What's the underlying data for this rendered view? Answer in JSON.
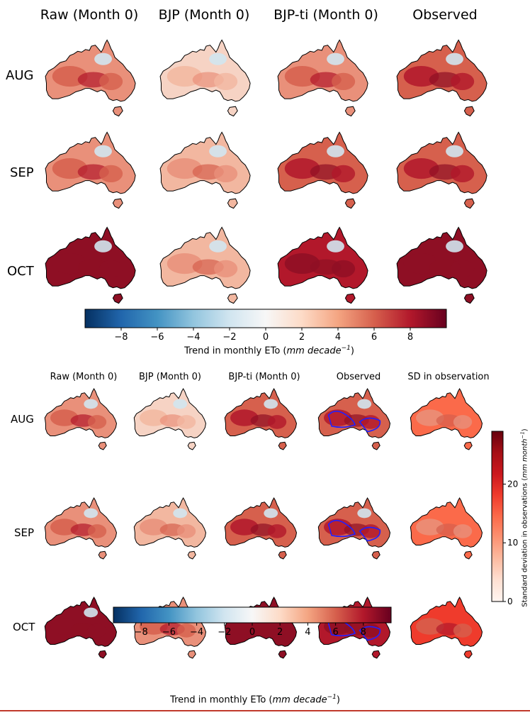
{
  "chart_data": [
    {
      "type": "heatmap",
      "title": "",
      "columns": [
        "Raw (Month 0)",
        "BJP (Month 0)",
        "BJP-ti (Month 0)",
        "Observed"
      ],
      "rows": [
        "AUG",
        "SEP",
        "OCT"
      ],
      "colorbar": {
        "label_prefix": "Trend in monthly ETo (",
        "label_unit": "mm decade",
        "label_exp": "−1",
        "label_suffix": ")",
        "range": [
          -10,
          10
        ],
        "ticks": [
          -8,
          -6,
          -4,
          -2,
          0,
          2,
          4,
          6,
          8
        ],
        "tick_labels": [
          "−8",
          "−6",
          "−4",
          "−2",
          "0",
          "2",
          "4",
          "6",
          "8"
        ],
        "colormap": "RdBu_r",
        "orientation": "horizontal"
      },
      "cell_levels": [
        [
          3,
          1,
          3,
          4
        ],
        [
          3,
          2,
          4,
          4
        ],
        [
          6,
          2,
          5,
          6
        ]
      ]
    },
    {
      "type": "heatmap",
      "title": "",
      "columns": [
        "Raw (Month 0)",
        "BJP (Month 0)",
        "BJP-ti (Month 0)",
        "Observed",
        "SD in observation"
      ],
      "rows": [
        "AUG",
        "SEP",
        "OCT"
      ],
      "colorbar": {
        "label_prefix": "Trend in monthly ETo (",
        "label_unit": "mm decade",
        "label_exp": "−1",
        "label_suffix": ")",
        "range": [
          -10,
          10
        ],
        "ticks": [
          -8,
          -6,
          -4,
          -2,
          0,
          2,
          4,
          6,
          8
        ],
        "tick_labels": [
          "−8",
          "−6",
          "−4",
          "−2",
          "0",
          "2",
          "4",
          "6",
          "8"
        ],
        "colormap": "RdBu_r",
        "orientation": "horizontal"
      },
      "colorbar2": {
        "label_prefix": "Standard deviation in observations (",
        "label_unit": "mm month",
        "label_exp": "−1",
        "label_suffix": ")",
        "range": [
          0,
          29
        ],
        "ticks": [
          0,
          10,
          20
        ],
        "tick_labels": [
          "0",
          "10",
          "20"
        ],
        "colormap": "Reds",
        "orientation": "vertical"
      },
      "cell_levels": [
        [
          3,
          1,
          4,
          4,
          2
        ],
        [
          3,
          2,
          4,
          4,
          2
        ],
        [
          6,
          3,
          6,
          5,
          3
        ]
      ]
    }
  ],
  "colors": {
    "accent_dark_red": "#67001f",
    "accent_dark_blue": "#053061",
    "significance_contour": "#2020ff",
    "coastline": "#000000"
  }
}
